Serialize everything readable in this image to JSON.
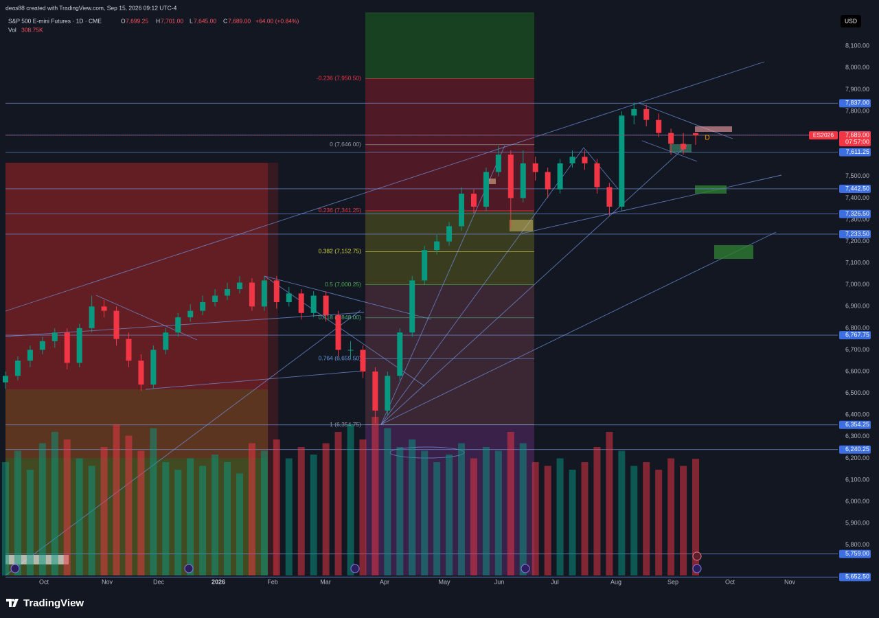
{
  "header": {
    "credit": "deas88 created with TradingView.com, Sep 15, 2026 09:12 UTC-4",
    "symbol": "S&P 500 E-mini Futures · 1D · CME",
    "ohlc": [
      {
        "key": "O",
        "value": "7,699.25"
      },
      {
        "key": "H",
        "value": "7,701.00"
      },
      {
        "key": "L",
        "value": "7,645.00"
      },
      {
        "key": "C",
        "value": "7,689.00"
      }
    ],
    "change": "+64.00 (+0.84%)",
    "vol_key": "Vol",
    "vol_value": "308.75K"
  },
  "currency": "USD",
  "logo": "TradingView",
  "chart_data": {
    "type": "candlestick",
    "up_color": "#089981",
    "down_color": "#f23645",
    "line_color": "#6e8fd8",
    "label_color": "#3d6fe0",
    "x_labels": [
      "Oct",
      "Nov",
      "Dec",
      "2026",
      "Feb",
      "Mar",
      "Apr",
      "May",
      "Jun",
      "Jul",
      "Aug",
      "Sep",
      "Oct",
      "Nov"
    ],
    "open": [
      6550,
      6580,
      6650,
      6700,
      6740,
      6780,
      6640,
      6800,
      6900,
      6880,
      6750,
      6650,
      6540,
      6700,
      6780,
      6850,
      6880,
      6920,
      6950,
      6980,
      7010,
      6900,
      7020,
      6920,
      6960,
      6870,
      6950,
      6860,
      6700,
      6700,
      6600,
      6420,
      6580,
      6780,
      7020,
      7160,
      7200,
      7270,
      7420,
      7360,
      7520,
      7600,
      7400,
      7560,
      7520,
      7440,
      7560,
      7590,
      7560,
      7450,
      7360,
      7780,
      7810,
      7760,
      7700,
      7650,
      7699.25
    ],
    "high": [
      6600,
      6670,
      6720,
      6760,
      6800,
      6800,
      6820,
      6950,
      6930,
      6900,
      6780,
      6680,
      6720,
      6800,
      6870,
      6910,
      6950,
      6980,
      7010,
      7040,
      7030,
      7040,
      7040,
      6990,
      6980,
      6970,
      6970,
      6880,
      6740,
      6720,
      6620,
      6600,
      6800,
      7040,
      7180,
      7230,
      7290,
      7450,
      7440,
      7540,
      7640,
      7620,
      7620,
      7590,
      7540,
      7580,
      7620,
      7620,
      7580,
      7470,
      7800,
      7840,
      7830,
      7790,
      7720,
      7700,
      7701
    ],
    "low": [
      6520,
      6560,
      6620,
      6680,
      6710,
      6610,
      6620,
      6780,
      6850,
      6720,
      6620,
      6510,
      6520,
      6680,
      6760,
      6830,
      6860,
      6900,
      6930,
      6960,
      6880,
      6880,
      6890,
      6900,
      6840,
      6850,
      6830,
      6670,
      6660,
      6570,
      6360,
      6400,
      6560,
      6760,
      7000,
      7140,
      7180,
      7250,
      7330,
      7340,
      7500,
      7260,
      7380,
      7480,
      7400,
      7420,
      7540,
      7530,
      7420,
      7320,
      7340,
      7740,
      7730,
      7680,
      7600,
      7600,
      7645
    ],
    "close": [
      6580,
      6650,
      6700,
      6740,
      6780,
      6640,
      6800,
      6900,
      6880,
      6750,
      6650,
      6540,
      6700,
      6780,
      6850,
      6880,
      6920,
      6950,
      6980,
      7010,
      6900,
      7020,
      6920,
      6960,
      6870,
      6950,
      6860,
      6700,
      6700,
      6600,
      6420,
      6580,
      6780,
      7020,
      7160,
      7200,
      7270,
      7420,
      7360,
      7520,
      7600,
      7400,
      7560,
      7520,
      7440,
      7560,
      7590,
      7560,
      7450,
      7360,
      7780,
      7810,
      7760,
      7700,
      7650,
      7625,
      7689
    ],
    "volume": [
      300,
      330,
      280,
      350,
      380,
      360,
      310,
      290,
      340,
      400,
      370,
      330,
      390,
      300,
      280,
      310,
      290,
      320,
      300,
      270,
      350,
      330,
      360,
      310,
      340,
      320,
      350,
      380,
      400,
      360,
      420,
      390,
      340,
      360,
      330,
      300,
      320,
      350,
      310,
      340,
      330,
      380,
      350,
      300,
      290,
      310,
      280,
      300,
      340,
      380,
      330,
      290,
      300,
      280,
      310,
      290,
      308.75
    ],
    "ylim": [
      5660,
      8256
    ],
    "yticks": [
      {
        "value": 8100,
        "label": "8,100.00"
      },
      {
        "value": 8000,
        "label": "8,000.00"
      },
      {
        "value": 7900,
        "label": "7,900.00"
      },
      {
        "value": 7800,
        "label": "7,800.00"
      },
      {
        "value": 7500,
        "label": "7,500.00"
      },
      {
        "value": 7400,
        "label": "7,400.00"
      },
      {
        "value": 7300,
        "label": "7,300.00"
      },
      {
        "value": 7200,
        "label": "7,200.00"
      },
      {
        "value": 7100,
        "label": "7,100.00"
      },
      {
        "value": 7000,
        "label": "7,000.00"
      },
      {
        "value": 6900,
        "label": "6,900.00"
      },
      {
        "value": 6800,
        "label": "6,800.00"
      },
      {
        "value": 6700,
        "label": "6,700.00"
      },
      {
        "value": 6600,
        "label": "6,600.00"
      },
      {
        "value": 6500,
        "label": "6,500.00"
      },
      {
        "value": 6400,
        "label": "6,400.00"
      },
      {
        "value": 6300,
        "label": "6,300.00"
      },
      {
        "value": 6200,
        "label": "6,200.00"
      },
      {
        "value": 6100,
        "label": "6,100.00"
      },
      {
        "value": 6000,
        "label": "6,000.00"
      },
      {
        "value": 5900,
        "label": "5,900.00"
      },
      {
        "value": 5800,
        "label": "5,800.00"
      }
    ],
    "price_lines": [
      {
        "value": 7837,
        "label": "7,837.00"
      },
      {
        "value": 7689.75,
        "label": "7,689.75"
      },
      {
        "value": 7611.25,
        "label": "7,611.25"
      },
      {
        "value": 7442.5,
        "label": "7,442.50"
      },
      {
        "value": 7326.5,
        "label": "7,326.50"
      },
      {
        "value": 7233.5,
        "label": "7,233.50"
      },
      {
        "value": 6767.75,
        "label": "6,767.75"
      },
      {
        "value": 6354.25,
        "label": "6,354.25"
      },
      {
        "value": 6240.25,
        "label": "6,240.25"
      },
      {
        "value": 5759,
        "label": "5,759.00"
      },
      {
        "value": 5652.5,
        "label": "5,652.50"
      }
    ],
    "fib_levels": [
      {
        "value": 7950.5,
        "label": "-0.236 (7,950.50)",
        "color": "#f23645"
      },
      {
        "value": 7646,
        "label": "0 (7,646.00)",
        "color": "#9598a1"
      },
      {
        "value": 7341.25,
        "label": "0.236 (7,341.25)",
        "color": "#f23645"
      },
      {
        "value": 7152.75,
        "label": "0.382 (7,152.75)",
        "color": "#d6d64a"
      },
      {
        "value": 7000.25,
        "label": "0.5 (7,000.25)",
        "color": "#4caf50"
      },
      {
        "value": 6848,
        "label": "0.618 (6,848.00)",
        "color": "#4caf80"
      },
      {
        "value": 6659.5,
        "label": "0.764 (6,659.50)",
        "color": "#6a9be0"
      },
      {
        "value": 6354.75,
        "label": "1 (6,354.75)",
        "color": "#9598a1"
      }
    ],
    "symbol_tag": "ES2026",
    "last_price": {
      "value": 7689,
      "label": "7,689.00"
    },
    "countdown": "07:57:00",
    "marker": "D"
  }
}
